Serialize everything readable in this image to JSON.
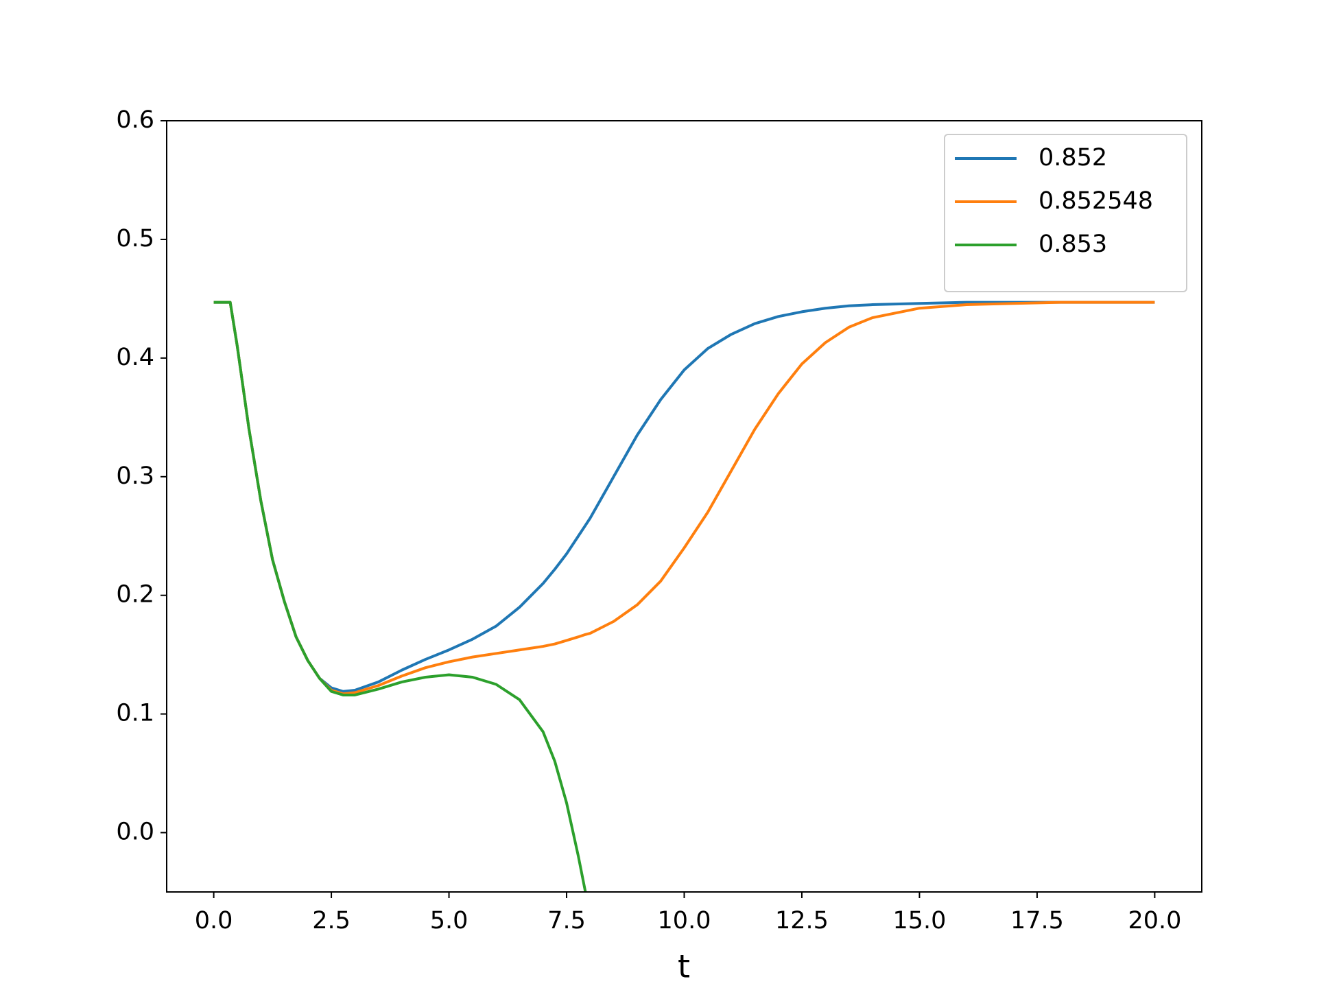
{
  "chart_data": {
    "type": "line",
    "xlabel": "t",
    "x": [
      0,
      0.35,
      0.5,
      0.75,
      1,
      1.25,
      1.5,
      1.75,
      2,
      2.25,
      2.5,
      2.75,
      3,
      3.5,
      4,
      4.5,
      5,
      5.5,
      6,
      6.5,
      7,
      7.25,
      7.5,
      7.75,
      7.9,
      8,
      8.5,
      9,
      9.5,
      10,
      10.5,
      11,
      11.5,
      12,
      12.5,
      13,
      13.5,
      14,
      15,
      16,
      17,
      18,
      20
    ],
    "series": [
      {
        "name": "0.852",
        "color": "#1f77b4",
        "values": [
          0.447,
          0.447,
          0.41,
          0.34,
          0.28,
          0.23,
          0.195,
          0.165,
          0.145,
          0.13,
          0.122,
          0.119,
          0.12,
          0.127,
          0.137,
          0.146,
          0.154,
          0.163,
          0.174,
          0.19,
          0.21,
          0.222,
          0.235,
          0.25,
          0.259,
          0.265,
          0.3,
          0.335,
          0.365,
          0.39,
          0.408,
          0.42,
          0.429,
          0.435,
          0.439,
          0.442,
          0.444,
          0.445,
          0.446,
          0.447,
          0.447,
          0.447,
          0.447
        ]
      },
      {
        "name": "0.852548",
        "color": "#ff7f0e",
        "values": [
          0.447,
          0.447,
          0.41,
          0.34,
          0.28,
          0.23,
          0.195,
          0.165,
          0.145,
          0.13,
          0.12,
          0.117,
          0.118,
          0.124,
          0.132,
          0.139,
          0.144,
          0.148,
          0.151,
          0.154,
          0.157,
          0.159,
          0.162,
          0.165,
          0.167,
          0.168,
          0.178,
          0.192,
          0.212,
          0.24,
          0.27,
          0.305,
          0.34,
          0.37,
          0.395,
          0.413,
          0.426,
          0.434,
          0.442,
          0.445,
          0.446,
          0.447,
          0.447
        ]
      },
      {
        "name": "0.853",
        "color": "#2ca02c",
        "values": [
          0.447,
          0.447,
          0.41,
          0.34,
          0.28,
          0.23,
          0.195,
          0.165,
          0.145,
          0.13,
          0.119,
          0.116,
          0.116,
          0.121,
          0.127,
          0.131,
          0.133,
          0.131,
          0.125,
          0.112,
          0.085,
          0.06,
          0.025,
          -0.02,
          -0.05,
          null,
          null,
          null,
          null,
          null,
          null,
          null,
          null,
          null,
          null,
          null,
          null,
          null,
          null,
          null,
          null,
          null,
          null
        ]
      }
    ],
    "xlim": [
      -1,
      21
    ],
    "ylim": [
      -0.05,
      0.6
    ],
    "xticks": [
      {
        "value": 0,
        "label": "0.0"
      },
      2.5,
      {
        "value": 5,
        "label": "5.0"
      },
      7.5,
      {
        "value": 10,
        "label": "10.0"
      },
      12.5,
      {
        "value": 15,
        "label": "15.0"
      },
      17.5,
      {
        "value": 20,
        "label": "20.0"
      }
    ],
    "yticks": [
      {
        "value": 0,
        "label": "0.0"
      },
      0.1,
      0.2,
      0.3,
      0.4,
      0.5,
      0.6
    ],
    "legend": "upper right",
    "grid": false
  }
}
